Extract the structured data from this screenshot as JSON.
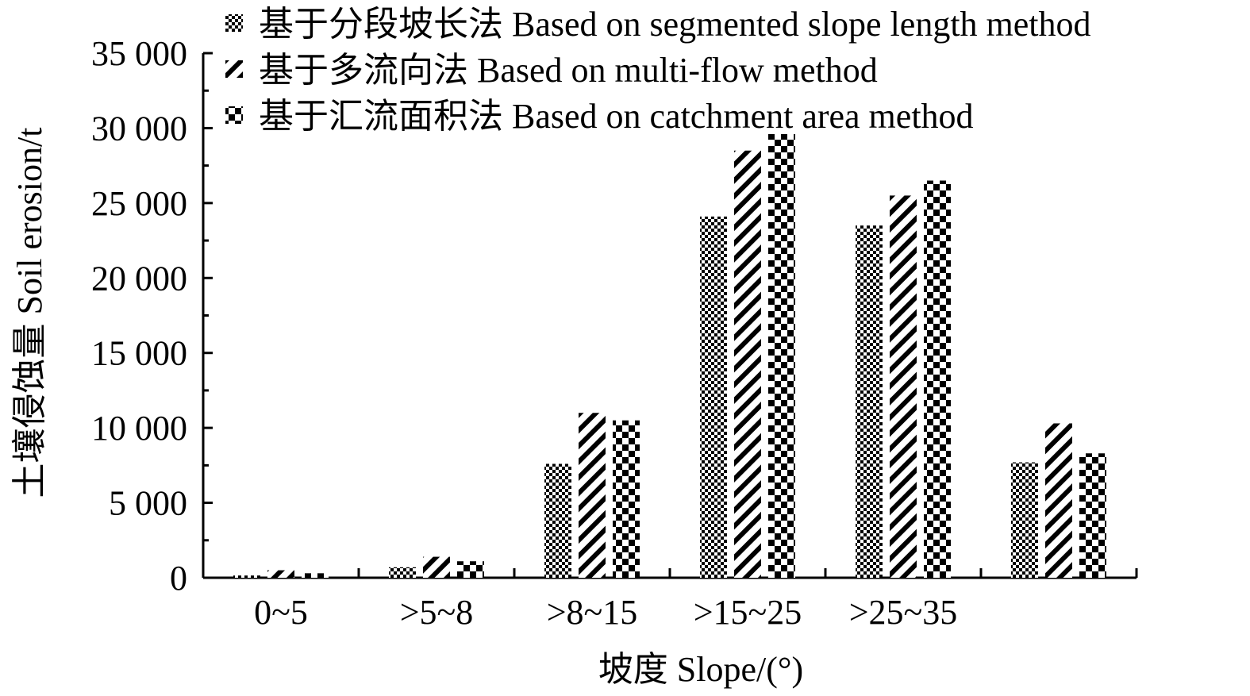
{
  "chart_data": {
    "type": "bar",
    "xlabel": "坡度 Slope/(°)",
    "ylabel": "土壤侵蚀量 Soil erosion/t",
    "ylim": [
      0,
      35000
    ],
    "yticks": [
      "0",
      "5 000",
      "10 000",
      "15 000",
      "20 000",
      "25 000",
      "30 000",
      "35 000"
    ],
    "ytick_values": [
      0,
      5000,
      10000,
      15000,
      20000,
      25000,
      30000,
      35000
    ],
    "categories": [
      "0~5",
      ">5~8",
      ">8~15",
      ">15~25",
      ">25~35",
      ""
    ],
    "legend_position": "top",
    "grid": false,
    "series": [
      {
        "name": "基于分段坡长法 Based on segmented slope length method",
        "values": [
          150,
          700,
          7600,
          24100,
          23500,
          7700
        ],
        "pattern": "checker-fine"
      },
      {
        "name": "基于多流向法 Based on multi-flow method",
        "values": [
          500,
          1400,
          11000,
          28500,
          25500,
          10300
        ],
        "pattern": "diagonal"
      },
      {
        "name": "基于汇流面积法 Based on catchment area method",
        "values": [
          300,
          1100,
          10500,
          29600,
          26500,
          8300
        ],
        "pattern": "checker-coarse"
      }
    ]
  }
}
